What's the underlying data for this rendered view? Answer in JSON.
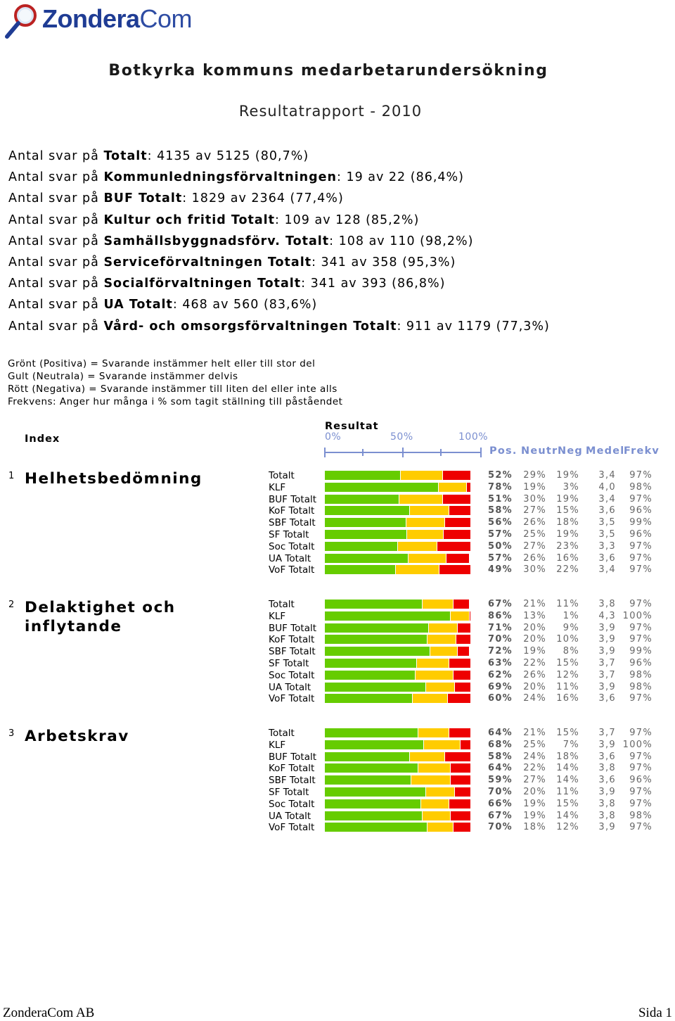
{
  "logo": {
    "brand_main": "Zondera",
    "brand_suffix": "Com"
  },
  "title": "Botkyrka kommuns medarbetarundersökning",
  "subtitle": "Resultatrapport - 2010",
  "responses": [
    {
      "prefix": "Antal svar på ",
      "name": "Totalt",
      "suffix": ": 4135 av 5125 (80,7%)"
    },
    {
      "prefix": "Antal svar på ",
      "name": "Kommunledningsförvaltningen",
      "suffix": ": 19 av 22 (86,4%)"
    },
    {
      "prefix": "Antal svar på ",
      "name": "BUF Totalt",
      "suffix": ": 1829 av 2364 (77,4%)"
    },
    {
      "prefix": "Antal svar på ",
      "name": "Kultur och fritid Totalt",
      "suffix": ": 109 av 128 (85,2%)"
    },
    {
      "prefix": "Antal svar på ",
      "name": "Samhällsbyggnadsförv. Totalt",
      "suffix": ": 108 av 110 (98,2%)"
    },
    {
      "prefix": "Antal svar på ",
      "name": "Serviceförvaltningen Totalt",
      "suffix": ": 341 av 358 (95,3%)"
    },
    {
      "prefix": "Antal svar på ",
      "name": "Socialförvaltningen Totalt",
      "suffix": ": 341 av 393 (86,8%)"
    },
    {
      "prefix": "Antal svar på ",
      "name": "UA Totalt",
      "suffix": ": 468 av 560 (83,6%)"
    },
    {
      "prefix": "Antal svar på ",
      "name": "Vård- och omsorgsförvaltningen Totalt",
      "suffix": ": 911 av 1179 (77,3%)"
    }
  ],
  "legend": [
    "Grönt (Positiva) = Svarande instämmer helt eller till stor del",
    "Gult (Neutrala) = Svarande instämmer delvis",
    "Rött (Negativa) = Svarande instämmer till liten del eller inte alls",
    "Frekvens: Anger hur många i % som tagit ställning till påståendet"
  ],
  "table_header": {
    "index": "Index",
    "result": "Resultat",
    "scale": [
      "0%",
      "50%",
      "100%"
    ],
    "columns": [
      "Pos.",
      "Neutr",
      "Neg",
      "Medel",
      "Frekv"
    ]
  },
  "colors": {
    "positive": "#66cc00",
    "neutral": "#ffcc00",
    "negative": "#ee0000",
    "scale": "#7b8fd0"
  },
  "chart_data": {
    "type": "bar",
    "stacked": true,
    "orientation": "horizontal",
    "xlim": [
      0,
      100
    ],
    "units": "%",
    "sections": [
      {
        "number": "1",
        "title": "Helhetsbedömning",
        "rows": [
          {
            "label": "Totalt",
            "pos": 52,
            "neutr": 29,
            "neg": 19,
            "medel": "3,4",
            "frekv": 97
          },
          {
            "label": "KLF",
            "pos": 78,
            "neutr": 19,
            "neg": 3,
            "medel": "4,0",
            "frekv": 98
          },
          {
            "label": "BUF Totalt",
            "pos": 51,
            "neutr": 30,
            "neg": 19,
            "medel": "3,4",
            "frekv": 97
          },
          {
            "label": "KoF Totalt",
            "pos": 58,
            "neutr": 27,
            "neg": 15,
            "medel": "3,6",
            "frekv": 96
          },
          {
            "label": "SBF Totalt",
            "pos": 56,
            "neutr": 26,
            "neg": 18,
            "medel": "3,5",
            "frekv": 99
          },
          {
            "label": "SF Totalt",
            "pos": 57,
            "neutr": 25,
            "neg": 19,
            "medel": "3,5",
            "frekv": 96
          },
          {
            "label": "Soc Totalt",
            "pos": 50,
            "neutr": 27,
            "neg": 23,
            "medel": "3,3",
            "frekv": 97
          },
          {
            "label": "UA Totalt",
            "pos": 57,
            "neutr": 26,
            "neg": 16,
            "medel": "3,6",
            "frekv": 97
          },
          {
            "label": "VoF Totalt",
            "pos": 49,
            "neutr": 30,
            "neg": 22,
            "medel": "3,4",
            "frekv": 97
          }
        ]
      },
      {
        "number": "2",
        "title": "Delaktighet och inflytande",
        "rows": [
          {
            "label": "Totalt",
            "pos": 67,
            "neutr": 21,
            "neg": 11,
            "medel": "3,8",
            "frekv": 97
          },
          {
            "label": "KLF",
            "pos": 86,
            "neutr": 13,
            "neg": 1,
            "medel": "4,3",
            "frekv": 100
          },
          {
            "label": "BUF Totalt",
            "pos": 71,
            "neutr": 20,
            "neg": 9,
            "medel": "3,9",
            "frekv": 97
          },
          {
            "label": "KoF Totalt",
            "pos": 70,
            "neutr": 20,
            "neg": 10,
            "medel": "3,9",
            "frekv": 97
          },
          {
            "label": "SBF Totalt",
            "pos": 72,
            "neutr": 19,
            "neg": 8,
            "medel": "3,9",
            "frekv": 99
          },
          {
            "label": "SF Totalt",
            "pos": 63,
            "neutr": 22,
            "neg": 15,
            "medel": "3,7",
            "frekv": 96
          },
          {
            "label": "Soc Totalt",
            "pos": 62,
            "neutr": 26,
            "neg": 12,
            "medel": "3,7",
            "frekv": 98
          },
          {
            "label": "UA Totalt",
            "pos": 69,
            "neutr": 20,
            "neg": 11,
            "medel": "3,9",
            "frekv": 98
          },
          {
            "label": "VoF Totalt",
            "pos": 60,
            "neutr": 24,
            "neg": 16,
            "medel": "3,6",
            "frekv": 97
          }
        ]
      },
      {
        "number": "3",
        "title": "Arbetskrav",
        "rows": [
          {
            "label": "Totalt",
            "pos": 64,
            "neutr": 21,
            "neg": 15,
            "medel": "3,7",
            "frekv": 97
          },
          {
            "label": "KLF",
            "pos": 68,
            "neutr": 25,
            "neg": 7,
            "medel": "3,9",
            "frekv": 100
          },
          {
            "label": "BUF Totalt",
            "pos": 58,
            "neutr": 24,
            "neg": 18,
            "medel": "3,6",
            "frekv": 97
          },
          {
            "label": "KoF Totalt",
            "pos": 64,
            "neutr": 22,
            "neg": 14,
            "medel": "3,8",
            "frekv": 97
          },
          {
            "label": "SBF Totalt",
            "pos": 59,
            "neutr": 27,
            "neg": 14,
            "medel": "3,6",
            "frekv": 96
          },
          {
            "label": "SF Totalt",
            "pos": 70,
            "neutr": 20,
            "neg": 11,
            "medel": "3,9",
            "frekv": 97
          },
          {
            "label": "Soc Totalt",
            "pos": 66,
            "neutr": 19,
            "neg": 15,
            "medel": "3,8",
            "frekv": 97
          },
          {
            "label": "UA Totalt",
            "pos": 67,
            "neutr": 19,
            "neg": 14,
            "medel": "3,8",
            "frekv": 98
          },
          {
            "label": "VoF Totalt",
            "pos": 70,
            "neutr": 18,
            "neg": 12,
            "medel": "3,9",
            "frekv": 97
          }
        ]
      }
    ]
  },
  "footer": {
    "left": "ZonderaCom AB",
    "right": "Sida 1"
  }
}
